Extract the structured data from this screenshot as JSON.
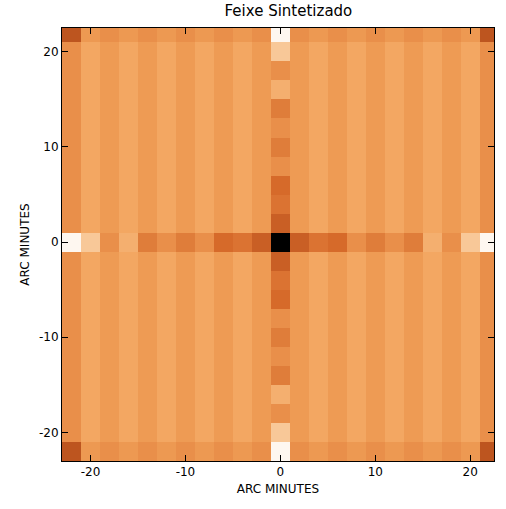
{
  "chart_data": {
    "type": "heatmap",
    "title": "Feixe Sintetizado",
    "x_label": "ARC MINUTES",
    "y_label": "ARC MINUTES",
    "xlim": [
      -23,
      22.5
    ],
    "ylim": [
      -23,
      22.5
    ],
    "xticks": [
      -20,
      -10,
      0,
      10,
      20
    ],
    "yticks": [
      -20,
      -10,
      0,
      10,
      20
    ],
    "zlim": [
      -1,
      1
    ],
    "x": [
      -22,
      -20,
      -18,
      -16,
      -14,
      -12,
      -10,
      -8,
      -6,
      -4,
      -2,
      0,
      2,
      4,
      6,
      8,
      10,
      12,
      14,
      16,
      18,
      20,
      22
    ],
    "y": [
      -22,
      -20,
      -18,
      -16,
      -14,
      -12,
      -10,
      -8,
      -6,
      -4,
      -2,
      0,
      2,
      4,
      6,
      8,
      10,
      12,
      14,
      16,
      18,
      20,
      22
    ],
    "z": [
      [
        0.4,
        0.05,
        0.1,
        0.05,
        0.1,
        0.05,
        0.1,
        0.05,
        0.1,
        0.05,
        0.1,
        -0.9,
        0.1,
        0.05,
        0.1,
        0.05,
        0.1,
        0.05,
        0.1,
        0.05,
        0.1,
        0.05,
        0.4
      ],
      [
        0.1,
        -0.04,
        0.04,
        -0.04,
        0.04,
        -0.04,
        0.04,
        -0.04,
        0.04,
        -0.04,
        0.04,
        -0.3,
        0.04,
        -0.04,
        0.04,
        -0.04,
        0.04,
        -0.04,
        0.04,
        -0.04,
        0.04,
        -0.04,
        0.1
      ],
      [
        0.1,
        -0.04,
        0.04,
        -0.04,
        0.04,
        -0.04,
        0.04,
        -0.04,
        0.04,
        -0.04,
        0.04,
        0.1,
        0.04,
        -0.04,
        0.04,
        -0.04,
        0.04,
        -0.04,
        0.04,
        -0.04,
        0.04,
        -0.04,
        0.1
      ],
      [
        0.1,
        -0.04,
        0.04,
        -0.04,
        0.04,
        -0.04,
        0.04,
        -0.04,
        0.04,
        -0.04,
        0.04,
        -0.1,
        0.04,
        -0.04,
        0.04,
        -0.04,
        0.04,
        -0.04,
        0.04,
        -0.04,
        0.04,
        -0.04,
        0.1
      ],
      [
        0.1,
        -0.04,
        0.04,
        -0.04,
        0.04,
        -0.04,
        0.04,
        -0.04,
        0.04,
        -0.04,
        0.04,
        0.2,
        0.04,
        -0.04,
        0.04,
        -0.04,
        0.04,
        -0.04,
        0.04,
        -0.04,
        0.04,
        -0.04,
        0.1
      ],
      [
        0.1,
        -0.04,
        0.04,
        -0.04,
        0.04,
        -0.04,
        0.04,
        -0.04,
        0.04,
        -0.04,
        0.04,
        0.1,
        0.04,
        -0.04,
        0.04,
        -0.04,
        0.04,
        -0.04,
        0.04,
        -0.04,
        0.04,
        -0.04,
        0.1
      ],
      [
        0.1,
        -0.04,
        0.04,
        -0.04,
        0.04,
        -0.04,
        0.04,
        -0.04,
        0.04,
        -0.04,
        0.04,
        0.2,
        0.04,
        -0.04,
        0.04,
        -0.04,
        0.04,
        -0.04,
        0.04,
        -0.04,
        0.04,
        -0.04,
        0.1
      ],
      [
        0.1,
        -0.04,
        0.04,
        -0.04,
        0.04,
        -0.04,
        0.04,
        -0.04,
        0.04,
        -0.04,
        0.04,
        0.1,
        0.04,
        -0.04,
        0.04,
        -0.04,
        0.04,
        -0.04,
        0.04,
        -0.04,
        0.04,
        -0.04,
        0.1
      ],
      [
        0.1,
        -0.04,
        0.04,
        -0.04,
        0.04,
        -0.04,
        0.04,
        -0.04,
        0.04,
        -0.04,
        0.04,
        0.3,
        0.04,
        -0.04,
        0.04,
        -0.04,
        0.04,
        -0.04,
        0.04,
        -0.04,
        0.04,
        -0.04,
        0.1
      ],
      [
        0.1,
        -0.04,
        0.04,
        -0.04,
        0.04,
        -0.04,
        0.04,
        -0.04,
        0.04,
        -0.04,
        0.04,
        0.25,
        0.04,
        -0.04,
        0.04,
        -0.04,
        0.04,
        -0.04,
        0.04,
        -0.04,
        0.04,
        -0.04,
        0.1
      ],
      [
        0.1,
        -0.04,
        0.04,
        -0.04,
        0.04,
        -0.04,
        0.04,
        -0.04,
        0.04,
        -0.04,
        0.04,
        0.35,
        0.04,
        -0.04,
        0.04,
        -0.04,
        0.04,
        -0.04,
        0.04,
        -0.04,
        0.04,
        -0.04,
        0.1
      ],
      [
        -0.9,
        -0.3,
        0.1,
        -0.1,
        0.2,
        0.1,
        0.2,
        0.1,
        0.3,
        0.25,
        0.35,
        1,
        0.35,
        0.25,
        0.3,
        0.1,
        0.2,
        0.1,
        0.2,
        -0.1,
        0.1,
        -0.3,
        -0.9
      ],
      [
        0.1,
        -0.04,
        0.04,
        -0.04,
        0.04,
        -0.04,
        0.04,
        -0.04,
        0.04,
        -0.04,
        0.04,
        0.35,
        0.04,
        -0.04,
        0.04,
        -0.04,
        0.04,
        -0.04,
        0.04,
        -0.04,
        0.04,
        -0.04,
        0.1
      ],
      [
        0.1,
        -0.04,
        0.04,
        -0.04,
        0.04,
        -0.04,
        0.04,
        -0.04,
        0.04,
        -0.04,
        0.04,
        0.25,
        0.04,
        -0.04,
        0.04,
        -0.04,
        0.04,
        -0.04,
        0.04,
        -0.04,
        0.04,
        -0.04,
        0.1
      ],
      [
        0.1,
        -0.04,
        0.04,
        -0.04,
        0.04,
        -0.04,
        0.04,
        -0.04,
        0.04,
        -0.04,
        0.04,
        0.3,
        0.04,
        -0.04,
        0.04,
        -0.04,
        0.04,
        -0.04,
        0.04,
        -0.04,
        0.04,
        -0.04,
        0.1
      ],
      [
        0.1,
        -0.04,
        0.04,
        -0.04,
        0.04,
        -0.04,
        0.04,
        -0.04,
        0.04,
        -0.04,
        0.04,
        0.1,
        0.04,
        -0.04,
        0.04,
        -0.04,
        0.04,
        -0.04,
        0.04,
        -0.04,
        0.04,
        -0.04,
        0.1
      ],
      [
        0.1,
        -0.04,
        0.04,
        -0.04,
        0.04,
        -0.04,
        0.04,
        -0.04,
        0.04,
        -0.04,
        0.04,
        0.2,
        0.04,
        -0.04,
        0.04,
        -0.04,
        0.04,
        -0.04,
        0.04,
        -0.04,
        0.04,
        -0.04,
        0.1
      ],
      [
        0.1,
        -0.04,
        0.04,
        -0.04,
        0.04,
        -0.04,
        0.04,
        -0.04,
        0.04,
        -0.04,
        0.04,
        0.1,
        0.04,
        -0.04,
        0.04,
        -0.04,
        0.04,
        -0.04,
        0.04,
        -0.04,
        0.04,
        -0.04,
        0.1
      ],
      [
        0.1,
        -0.04,
        0.04,
        -0.04,
        0.04,
        -0.04,
        0.04,
        -0.04,
        0.04,
        -0.04,
        0.04,
        0.2,
        0.04,
        -0.04,
        0.04,
        -0.04,
        0.04,
        -0.04,
        0.04,
        -0.04,
        0.04,
        -0.04,
        0.1
      ],
      [
        0.1,
        -0.04,
        0.04,
        -0.04,
        0.04,
        -0.04,
        0.04,
        -0.04,
        0.04,
        -0.04,
        0.04,
        -0.1,
        0.04,
        -0.04,
        0.04,
        -0.04,
        0.04,
        -0.04,
        0.04,
        -0.04,
        0.04,
        -0.04,
        0.1
      ],
      [
        0.1,
        -0.04,
        0.04,
        -0.04,
        0.04,
        -0.04,
        0.04,
        -0.04,
        0.04,
        -0.04,
        0.04,
        0.1,
        0.04,
        -0.04,
        0.04,
        -0.04,
        0.04,
        -0.04,
        0.04,
        -0.04,
        0.04,
        -0.04,
        0.1
      ],
      [
        0.1,
        -0.04,
        0.04,
        -0.04,
        0.04,
        -0.04,
        0.04,
        -0.04,
        0.04,
        -0.04,
        0.04,
        -0.3,
        0.04,
        -0.04,
        0.04,
        -0.04,
        0.04,
        -0.04,
        0.04,
        -0.04,
        0.04,
        -0.04,
        0.1
      ],
      [
        0.4,
        0.05,
        0.1,
        0.05,
        0.1,
        0.05,
        0.1,
        0.05,
        0.1,
        0.05,
        0.1,
        -0.9,
        0.1,
        0.05,
        0.1,
        0.05,
        0.1,
        0.05,
        0.1,
        0.05,
        0.1,
        0.05,
        0.4
      ]
    ]
  }
}
